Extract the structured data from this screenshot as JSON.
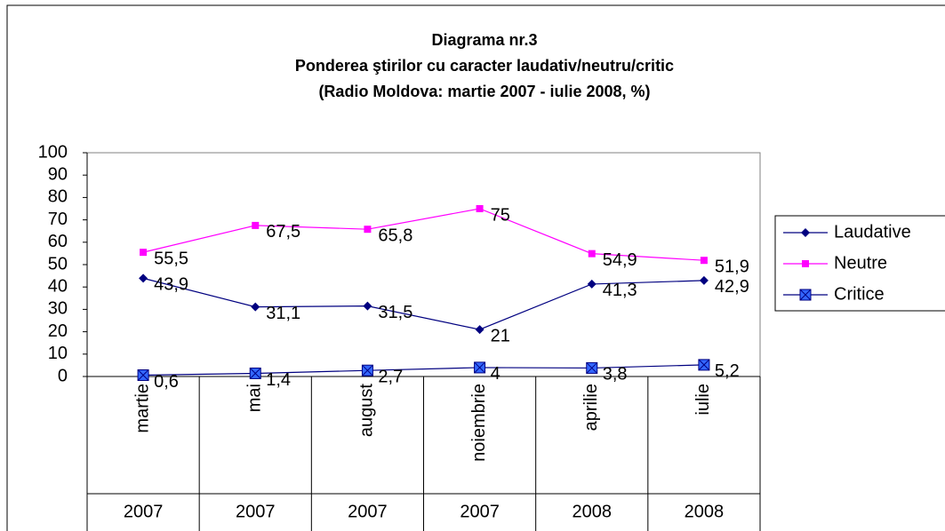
{
  "chart_data": {
    "type": "line",
    "title": "Diagrama nr.3",
    "subtitle": "Ponderea ştirilor cu caracter laudativ/neutru/critic",
    "subtitle2": "(Radio Moldova: martie 2007 - iulie 2008, %)",
    "categories": [
      "martie",
      "mai",
      "august",
      "noiembrie",
      "aprilie",
      "iulie"
    ],
    "category_groups": [
      "2007",
      "2007",
      "2007",
      "2007",
      "2008",
      "2008"
    ],
    "series": [
      {
        "name": "Laudative",
        "color": "#000080",
        "marker": "diamond",
        "values": [
          43.9,
          31.1,
          31.5,
          21,
          41.3,
          42.9
        ],
        "value_labels": [
          "43,9",
          "31,1",
          "31,5",
          "21",
          "41,3",
          "42,9"
        ]
      },
      {
        "name": "Neutre",
        "color": "#ff00ff",
        "marker": "square",
        "values": [
          55.5,
          67.5,
          65.8,
          75,
          54.9,
          51.9
        ],
        "value_labels": [
          "55,5",
          "67,5",
          "65,8",
          "75",
          "54,9",
          "51,9"
        ]
      },
      {
        "name": "Critice",
        "color": "#000080",
        "marker": "xsquare",
        "values": [
          0.6,
          1.4,
          2.7,
          4,
          3.8,
          5.2
        ],
        "value_labels": [
          "0,6",
          "1,4",
          "2,7",
          "4",
          "3,8",
          "5,2"
        ]
      }
    ],
    "ylim": [
      0,
      100
    ],
    "yticks": [
      0,
      10,
      20,
      30,
      40,
      50,
      60,
      70,
      80,
      90,
      100
    ],
    "grid": false,
    "legend": "right"
  }
}
